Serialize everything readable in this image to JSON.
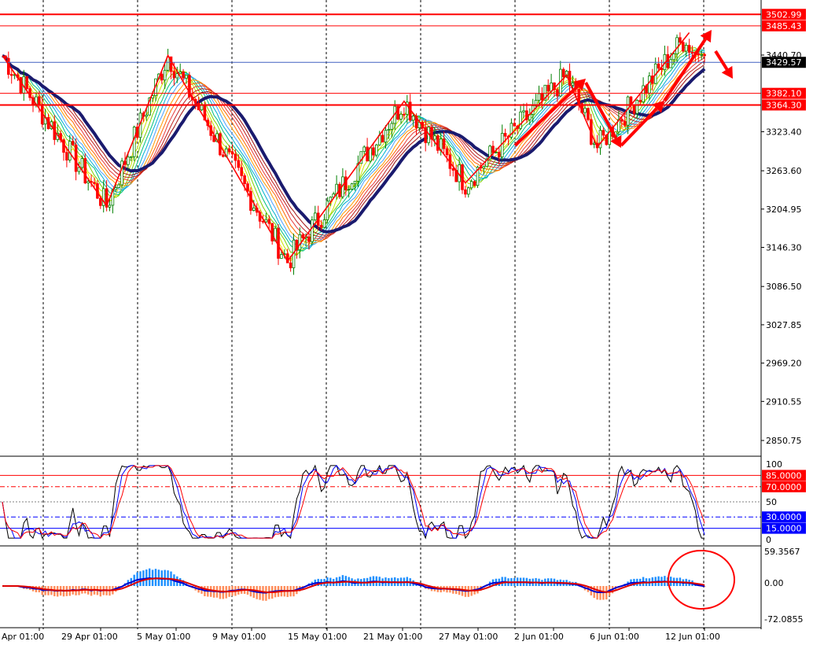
{
  "chart_data": {
    "type": "candlestick",
    "instrument_axis": {
      "main_ticks": [
        "3440.70",
        "3323.40",
        "3263.60",
        "3204.95",
        "3146.30",
        "3086.50",
        "3027.85",
        "2969.20",
        "2910.55",
        "2850.75"
      ],
      "stoch_ticks": [
        "100",
        "50",
        "0"
      ],
      "macd_ticks": [
        "59.3567",
        "0.00",
        "-72.0855"
      ]
    },
    "price_labels": [
      {
        "text": "3502.99",
        "value": 3502.99,
        "color": "#ff0000"
      },
      {
        "text": "3485.43",
        "value": 3485.43,
        "color": "#ff0000"
      },
      {
        "text": "3429.57",
        "value": 3429.57,
        "color": "#000000"
      },
      {
        "text": "3382.10",
        "value": 3382.1,
        "color": "#ff0000"
      },
      {
        "text": "3364.30",
        "value": 3364.3,
        "color": "#ff0000"
      }
    ],
    "stoch_levels": [
      {
        "text": "85.0000",
        "value": 85,
        "color": "#ff0000"
      },
      {
        "text": "70.0000",
        "value": 70,
        "color": "#ff0000"
      },
      {
        "text": "30.0000",
        "value": 30,
        "color": "#0000ff"
      },
      {
        "text": "15.0000",
        "value": 15,
        "color": "#0000ff"
      }
    ],
    "x_labels": [
      "Apr 01:00",
      "29 Apr 01:00",
      "5 May 01:00",
      "9 May 01:00",
      "15 May 01:00",
      "21 May 01:00",
      "27 May 01:00",
      "2 Jun 01:00",
      "6 Jun 01:00",
      "12 Jun 01:00"
    ],
    "zigzag": [
      {
        "bar": 0,
        "price": 3440
      },
      {
        "bar": 34,
        "price": 3210
      },
      {
        "bar": 54,
        "price": 3440
      },
      {
        "bar": 93,
        "price": 3125
      },
      {
        "bar": 131,
        "price": 3370
      },
      {
        "bar": 151,
        "price": 3245
      },
      {
        "bar": 184,
        "price": 3410
      },
      {
        "bar": 194,
        "price": 3300
      },
      {
        "bar": 224,
        "price": 3475
      }
    ],
    "colors": {
      "bull": "#008000",
      "bear": "#ff0000",
      "ma_thick": "#1a1a6e",
      "zigzag": "#ff0000",
      "macd_hist_pos": "#1e90ff",
      "macd_hist_neg": "#ff8c5a"
    }
  }
}
